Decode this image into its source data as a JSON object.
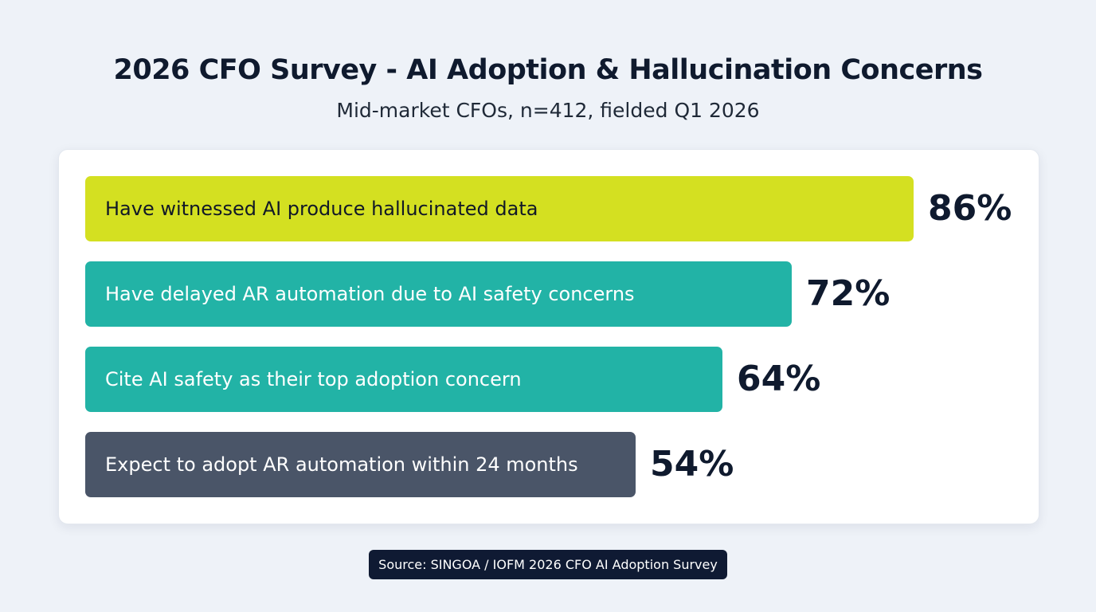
{
  "chart_data": {
    "type": "bar",
    "orientation": "horizontal",
    "title": "2026 CFO Survey - AI Adoption & Hallucination Concerns",
    "subtitle": "Mid-market CFOs, n=412, fielded Q1 2026",
    "categories": [
      "Have witnessed AI produce hallucinated data",
      "Have delayed AR automation due to AI safety concerns",
      "Cite AI safety as their top adoption concern",
      "Expect to adopt AR automation within 24 months"
    ],
    "values": [
      86,
      72,
      64,
      54
    ],
    "value_labels": [
      "86%",
      "72%",
      "64%",
      "54%"
    ],
    "colors": [
      "#d4e021",
      "#22b3a6",
      "#22b3a6",
      "#4a5568"
    ],
    "label_colors": [
      "#111827",
      "#ffffff",
      "#ffffff",
      "#ffffff"
    ],
    "grid": false,
    "source": "Source: SINGOA / IOFM 2026 CFO AI Adoption Survey"
  }
}
